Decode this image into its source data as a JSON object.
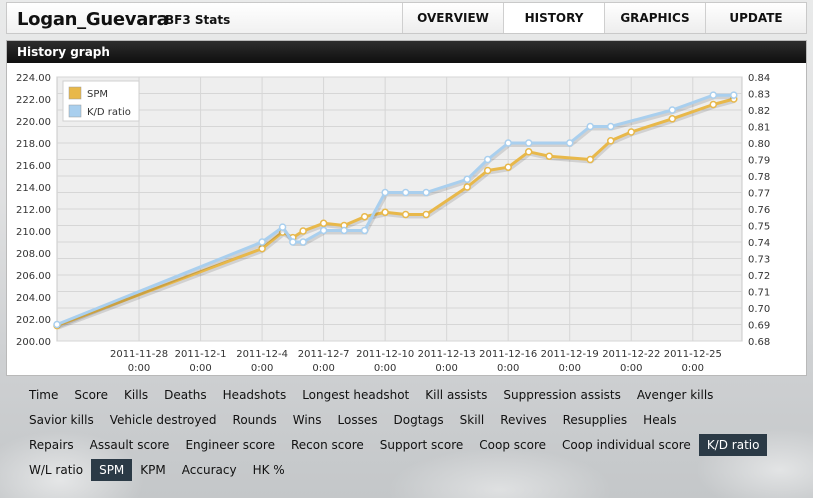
{
  "header": {
    "player_name": "Logan_Guevara",
    "subtitle": "BF3 Stats",
    "tabs": [
      {
        "label": "OVERVIEW",
        "active": false
      },
      {
        "label": "HISTORY",
        "active": true
      },
      {
        "label": "GRAPHICS",
        "active": false
      },
      {
        "label": "UPDATE",
        "active": false
      }
    ]
  },
  "panel": {
    "title": "History graph"
  },
  "chart_data": {
    "type": "line",
    "x_tick_labels": [
      [
        "2011-11-28",
        "0:00"
      ],
      [
        "2011-12-1",
        "0:00"
      ],
      [
        "2011-12-4",
        "0:00"
      ],
      [
        "2011-12-7",
        "0:00"
      ],
      [
        "2011-12-10",
        "0:00"
      ],
      [
        "2011-12-13",
        "0:00"
      ],
      [
        "2011-12-16",
        "0:00"
      ],
      [
        "2011-12-19",
        "0:00"
      ],
      [
        "2011-12-22",
        "0:00"
      ],
      [
        "2011-12-25",
        "0:00"
      ]
    ],
    "y_left": {
      "range": [
        200,
        224
      ],
      "ticks": [
        "200.00",
        "202.00",
        "204.00",
        "206.00",
        "208.00",
        "210.00",
        "212.00",
        "214.00",
        "216.00",
        "218.00",
        "220.00",
        "222.00",
        "224.00"
      ]
    },
    "y_right": {
      "range": [
        0.68,
        0.84
      ],
      "ticks": [
        "0.68",
        "0.69",
        "0.70",
        "0.71",
        "0.72",
        "0.73",
        "0.74",
        "0.75",
        "0.76",
        "0.77",
        "0.78",
        "0.79",
        "0.80",
        "0.81",
        "0.82",
        "0.83",
        "0.84"
      ]
    },
    "grid": true,
    "legend_position": "top-left",
    "series": [
      {
        "name": "SPM",
        "axis": "left",
        "color": "#e8b84a",
        "points": [
          [
            "2011-11-24",
            201.4
          ],
          [
            "2011-12-4",
            208.4
          ],
          [
            "2011-12-5",
            209.9
          ],
          [
            "2011-12-5 12:00",
            209.4
          ],
          [
            "2011-12-6",
            210.0
          ],
          [
            "2011-12-7",
            210.7
          ],
          [
            "2011-12-8",
            210.5
          ],
          [
            "2011-12-9",
            211.3
          ],
          [
            "2011-12-10",
            211.7
          ],
          [
            "2011-12-11",
            211.5
          ],
          [
            "2011-12-12",
            211.5
          ],
          [
            "2011-12-14",
            214.0
          ],
          [
            "2011-12-15",
            215.5
          ],
          [
            "2011-12-16",
            215.8
          ],
          [
            "2011-12-17",
            217.2
          ],
          [
            "2011-12-18",
            216.8
          ],
          [
            "2011-12-20",
            216.5
          ],
          [
            "2011-12-21",
            218.2
          ],
          [
            "2011-12-22",
            219.0
          ],
          [
            "2011-12-24",
            220.2
          ],
          [
            "2011-12-26",
            221.5
          ],
          [
            "2011-12-27",
            222.0
          ]
        ]
      },
      {
        "name": "K/D ratio",
        "axis": "right",
        "color": "#a9cfee",
        "points": [
          [
            "2011-11-24",
            0.69
          ],
          [
            "2011-12-4",
            0.74
          ],
          [
            "2011-12-5",
            0.749
          ],
          [
            "2011-12-5 12:00",
            0.74
          ],
          [
            "2011-12-6",
            0.74
          ],
          [
            "2011-12-7",
            0.747
          ],
          [
            "2011-12-8",
            0.747
          ],
          [
            "2011-12-9",
            0.747
          ],
          [
            "2011-12-10",
            0.77
          ],
          [
            "2011-12-11",
            0.77
          ],
          [
            "2011-12-12",
            0.77
          ],
          [
            "2011-12-14",
            0.778
          ],
          [
            "2011-12-15",
            0.79
          ],
          [
            "2011-12-16",
            0.8
          ],
          [
            "2011-12-17",
            0.8
          ],
          [
            "2011-12-19",
            0.8
          ],
          [
            "2011-12-20",
            0.81
          ],
          [
            "2011-12-21",
            0.81
          ],
          [
            "2011-12-24",
            0.82
          ],
          [
            "2011-12-26",
            0.829
          ],
          [
            "2011-12-27",
            0.829
          ]
        ]
      }
    ]
  },
  "stat_rows": [
    [
      {
        "label": "Time",
        "selected": false
      },
      {
        "label": "Score",
        "selected": false
      },
      {
        "label": "Kills",
        "selected": false
      },
      {
        "label": "Deaths",
        "selected": false
      },
      {
        "label": "Headshots",
        "selected": false
      },
      {
        "label": "Longest headshot",
        "selected": false
      },
      {
        "label": "Kill assists",
        "selected": false
      },
      {
        "label": "Suppression assists",
        "selected": false
      },
      {
        "label": "Avenger kills",
        "selected": false
      }
    ],
    [
      {
        "label": "Savior kills",
        "selected": false
      },
      {
        "label": "Vehicle destroyed",
        "selected": false
      },
      {
        "label": "Rounds",
        "selected": false
      },
      {
        "label": "Wins",
        "selected": false
      },
      {
        "label": "Losses",
        "selected": false
      },
      {
        "label": "Dogtags",
        "selected": false
      },
      {
        "label": "Skill",
        "selected": false
      },
      {
        "label": "Revives",
        "selected": false
      },
      {
        "label": "Resupplies",
        "selected": false
      },
      {
        "label": "Heals",
        "selected": false
      }
    ],
    [
      {
        "label": "Repairs",
        "selected": false
      },
      {
        "label": "Assault score",
        "selected": false
      },
      {
        "label": "Engineer score",
        "selected": false
      },
      {
        "label": "Recon score",
        "selected": false
      },
      {
        "label": "Support score",
        "selected": false
      },
      {
        "label": "Coop score",
        "selected": false
      },
      {
        "label": "Coop individual score",
        "selected": false
      },
      {
        "label": "K/D ratio",
        "selected": true
      }
    ],
    [
      {
        "label": "W/L ratio",
        "selected": false
      },
      {
        "label": "SPM",
        "selected": true
      },
      {
        "label": "KPM",
        "selected": false
      },
      {
        "label": "Accuracy",
        "selected": false
      },
      {
        "label": "HK %",
        "selected": false
      }
    ]
  ]
}
